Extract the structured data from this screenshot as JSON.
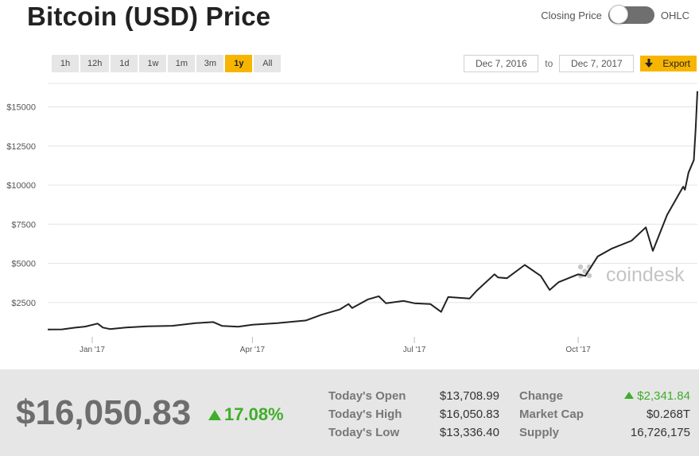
{
  "header": {
    "title": "Bitcoin (USD) Price",
    "toggle_left": "Closing Price",
    "toggle_right": "OHLC"
  },
  "ranges": [
    {
      "label": "1h",
      "active": false
    },
    {
      "label": "12h",
      "active": false
    },
    {
      "label": "1d",
      "active": false
    },
    {
      "label": "1w",
      "active": false
    },
    {
      "label": "1m",
      "active": false
    },
    {
      "label": "3m",
      "active": false
    },
    {
      "label": "1y",
      "active": true
    },
    {
      "label": "All",
      "active": false
    }
  ],
  "dates": {
    "from": "Dec 7, 2016",
    "to_label": "to",
    "to": "Dec 7, 2017"
  },
  "export_label": "Export",
  "watermark": "coindesk",
  "colors": {
    "accent": "#f7b500",
    "line": "#222222",
    "up": "#3fae2a"
  },
  "chart_data": {
    "type": "line",
    "title": "",
    "xlabel": "",
    "ylabel": "",
    "x_ticks": [
      "Jan '17",
      "Apr '17",
      "Jul '17",
      "Oct '17"
    ],
    "x_tick_dates": [
      "2017-01-01",
      "2017-04-01",
      "2017-07-01",
      "2017-10-01"
    ],
    "y_ticks": [
      "$2500",
      "$5000",
      "$7500",
      "$10000",
      "$12500",
      "$15000"
    ],
    "y_tick_values": [
      2500,
      5000,
      7500,
      10000,
      12500,
      15000
    ],
    "ylim": [
      0,
      16500
    ],
    "xlim": [
      "2016-12-07",
      "2017-12-07"
    ],
    "grid": true,
    "series": [
      {
        "x": [
          "2016-12-07",
          "2016-12-15",
          "2016-12-22",
          "2016-12-28",
          "2017-01-04",
          "2017-01-07",
          "2017-01-11",
          "2017-01-20",
          "2017-02-01",
          "2017-02-15",
          "2017-02-28",
          "2017-03-10",
          "2017-03-15",
          "2017-03-24",
          "2017-04-01",
          "2017-04-15",
          "2017-05-01",
          "2017-05-10",
          "2017-05-20",
          "2017-05-25",
          "2017-05-27",
          "2017-06-05",
          "2017-06-11",
          "2017-06-15",
          "2017-06-25",
          "2017-07-01",
          "2017-07-10",
          "2017-07-16",
          "2017-07-20",
          "2017-08-01",
          "2017-08-05",
          "2017-08-15",
          "2017-08-17",
          "2017-08-22",
          "2017-09-01",
          "2017-09-10",
          "2017-09-15",
          "2017-09-20",
          "2017-10-01",
          "2017-10-05",
          "2017-10-12",
          "2017-10-20",
          "2017-10-31",
          "2017-11-08",
          "2017-11-12",
          "2017-11-20",
          "2017-11-26",
          "2017-11-29",
          "2017-11-30",
          "2017-12-02",
          "2017-12-05",
          "2017-12-06",
          "2017-12-07"
        ],
        "values": [
          770,
          780,
          890,
          960,
          1150,
          900,
          800,
          900,
          980,
          1010,
          1180,
          1250,
          1000,
          950,
          1080,
          1180,
          1350,
          1720,
          2050,
          2400,
          2150,
          2700,
          2900,
          2450,
          2600,
          2450,
          2400,
          1900,
          2850,
          2750,
          3250,
          4300,
          4100,
          4050,
          4900,
          4200,
          3300,
          3800,
          4300,
          4200,
          5450,
          5950,
          6450,
          7300,
          5800,
          8100,
          9300,
          9900,
          9700,
          10800,
          11600,
          13600,
          16000
        ]
      }
    ]
  },
  "stats": {
    "price": "$16,050.83",
    "change_pct": "17.08%",
    "rows": [
      {
        "label": "Today's Open",
        "value": "$13,708.99",
        "label2": "Change",
        "value2": "$2,341.84"
      },
      {
        "label": "Today's High",
        "value": "$16,050.83",
        "label2": "Market Cap",
        "value2": "$0.268T"
      },
      {
        "label": "Today's Low",
        "value": "$13,336.40",
        "label2": "Supply",
        "value2": "16,726,175"
      }
    ]
  }
}
